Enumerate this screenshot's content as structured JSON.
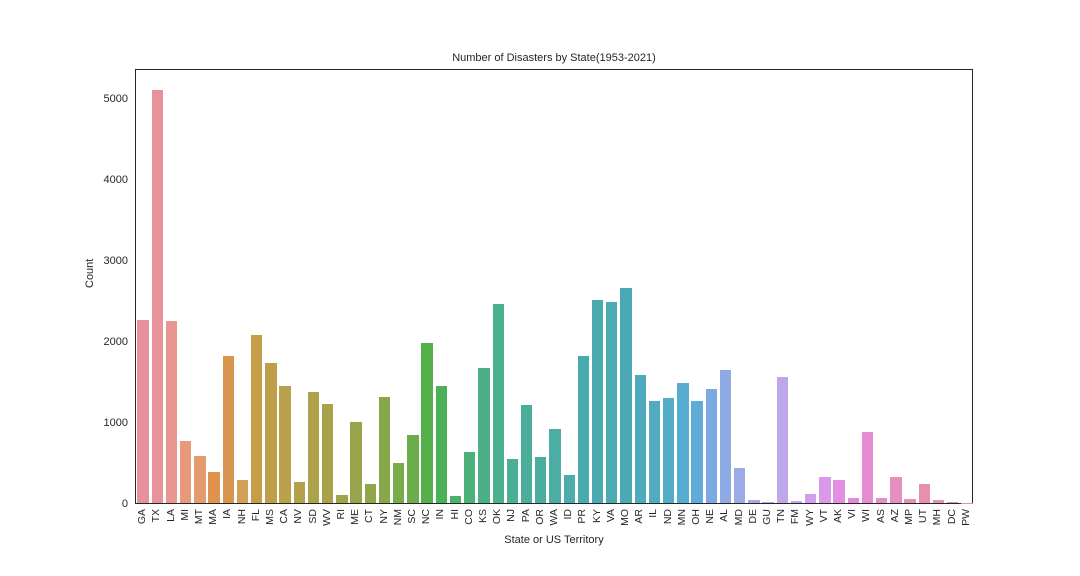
{
  "chart_data": {
    "type": "bar",
    "title": "Number of Disasters by State(1953-2021)",
    "xlabel": "State or US Territory",
    "ylabel": "Count",
    "ylim": [
      0,
      5370
    ],
    "yticks": [
      0,
      1000,
      2000,
      3000,
      4000,
      5000
    ],
    "grid": false,
    "legend": null,
    "categories": [
      "GA",
      "TX",
      "LA",
      "MI",
      "MT",
      "MA",
      "IA",
      "NH",
      "FL",
      "MS",
      "CA",
      "NV",
      "SD",
      "WV",
      "RI",
      "ME",
      "CT",
      "NY",
      "NM",
      "SC",
      "NC",
      "IN",
      "HI",
      "CO",
      "KS",
      "OK",
      "NJ",
      "PA",
      "OR",
      "WA",
      "ID",
      "PR",
      "KY",
      "VA",
      "MO",
      "AR",
      "IL",
      "ND",
      "MN",
      "OH",
      "NE",
      "AL",
      "MD",
      "DE",
      "GU",
      "TN",
      "FM",
      "WY",
      "VT",
      "AK",
      "VI",
      "WI",
      "AS",
      "AZ",
      "MP",
      "UT",
      "MH",
      "DC",
      "PW"
    ],
    "values": [
      2260,
      5100,
      2250,
      765,
      580,
      380,
      1815,
      285,
      2075,
      1730,
      1445,
      260,
      1370,
      1220,
      100,
      1000,
      235,
      1310,
      495,
      840,
      1975,
      1445,
      85,
      630,
      1665,
      2455,
      545,
      1210,
      570,
      915,
      345,
      1815,
      2505,
      2480,
      2655,
      1580,
      1260,
      1295,
      1480,
      1260,
      1405,
      1640,
      430,
      35,
      10,
      1555,
      25,
      110,
      320,
      285,
      65,
      880,
      65,
      320,
      50,
      235,
      40,
      15,
      5
    ],
    "colors": [
      "#e8919d",
      "#e8939a",
      "#e89690",
      "#e79979",
      "#e59a6c",
      "#e0934f",
      "#d9954f",
      "#d19f55",
      "#c69e4a",
      "#bf9e4a",
      "#b9a04a",
      "#b3a04a",
      "#ada14a",
      "#a8a24a",
      "#a1a24a",
      "#99a44a",
      "#8fa64a",
      "#87a84a",
      "#7aab4a",
      "#6aad4a",
      "#55b04a",
      "#4bb05a",
      "#4bb06a",
      "#4bb07a",
      "#4bb085",
      "#4bb090",
      "#4bae97",
      "#4bae9b",
      "#4bad9f",
      "#4bada3",
      "#4bacaa",
      "#4aabae",
      "#4aaaaf",
      "#4baab3",
      "#4ba9b5",
      "#4faabd",
      "#52abc3",
      "#54acc8",
      "#58acd0",
      "#5facd8",
      "#7aaae0",
      "#8daae4",
      "#9aabe7",
      "#a9aae8",
      "#b4a7e9",
      "#bda6e9",
      "#c7a3ea",
      "#d19fea",
      "#da99e8",
      "#e08fe3",
      "#e48adc",
      "#e68cd2",
      "#e78dc8",
      "#e78ec0",
      "#e88fb6",
      "#e890ab",
      "#e891a4",
      "#e8919e",
      "#e8929a"
    ]
  }
}
